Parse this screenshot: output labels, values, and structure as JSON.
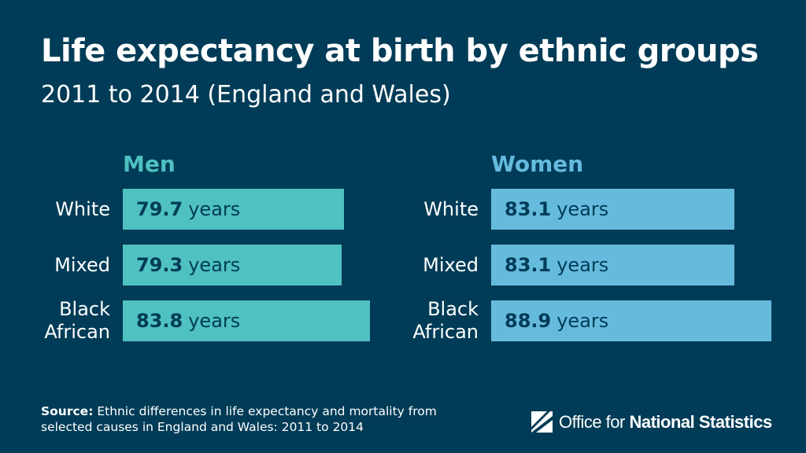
{
  "title": "Life expectancy at birth by ethnic groups",
  "subtitle": "2011 to 2014 (England and Wales)",
  "colors": {
    "background": "#003c57",
    "men_bar": "#4fc1c0",
    "women_bar": "#66bbdd",
    "men_title": "#4fc1c0",
    "women_title": "#66bbdd",
    "bar_text": "#003c57"
  },
  "unit_label": "years",
  "chart_data": [
    {
      "type": "bar",
      "title": "Men",
      "categories": [
        "White",
        "Mixed",
        "Black African"
      ],
      "category_lines": [
        [
          "White"
        ],
        [
          "Mixed"
        ],
        [
          "Black",
          "African"
        ]
      ],
      "values": [
        79.7,
        79.3,
        83.8
      ],
      "value_labels": [
        "79.7",
        "79.3",
        "83.8"
      ],
      "xlabel": "",
      "ylabel": "years"
    },
    {
      "type": "bar",
      "title": "Women",
      "categories": [
        "White",
        "Mixed",
        "Black African"
      ],
      "category_lines": [
        [
          "White"
        ],
        [
          "Mixed"
        ],
        [
          "Black",
          "African"
        ]
      ],
      "values": [
        83.1,
        83.1,
        88.9
      ],
      "value_labels": [
        "83.1",
        "83.1",
        "88.9"
      ],
      "xlabel": "",
      "ylabel": "years"
    }
  ],
  "source": {
    "label": "Source:",
    "text": "Ethnic differences in life expectancy and mortality from selected causes in England and Wales: 2011 to 2014"
  },
  "logo": {
    "icon": "ons-logo-icon",
    "text_regular": "Office for",
    "text_bold": "National Statistics"
  }
}
